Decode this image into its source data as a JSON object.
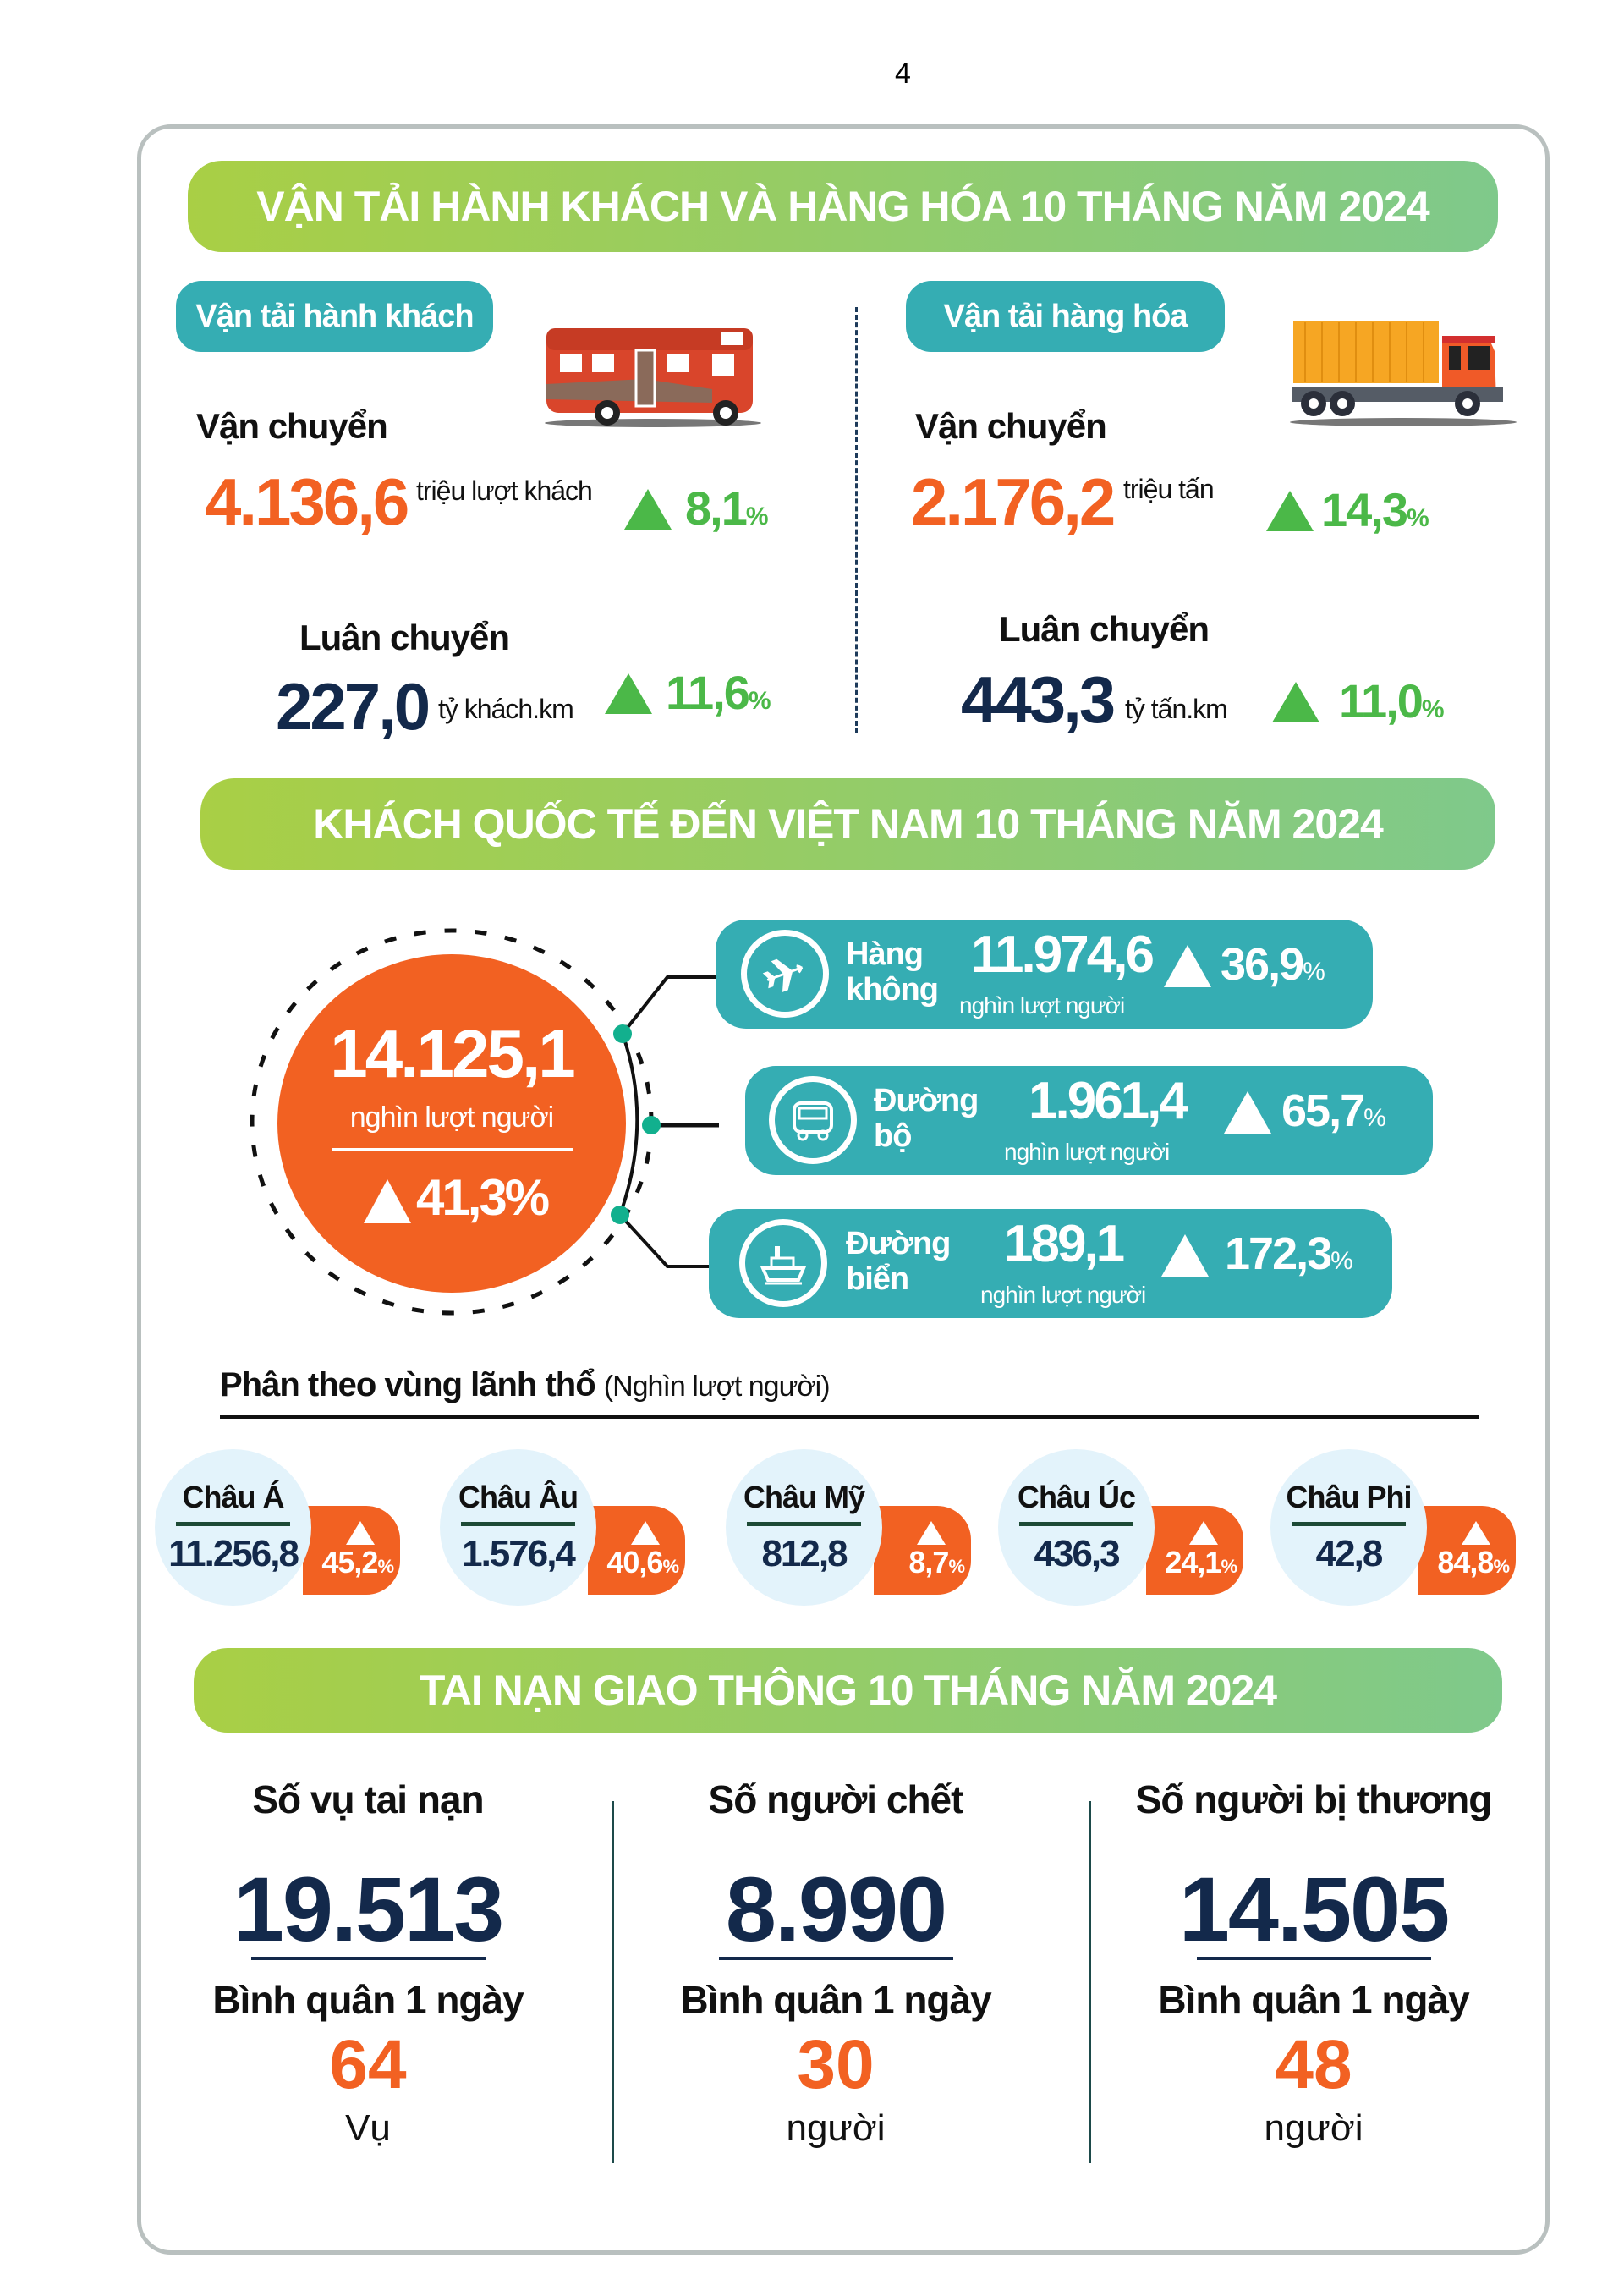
{
  "page_number": "4",
  "colors": {
    "orange": "#f26122",
    "navy": "#13294b",
    "green": "#4bb848",
    "teal": "#35adb3",
    "banner_start": "#a9cf45",
    "banner_end": "#7fc98b"
  },
  "section1": {
    "title": "VẬN TẢI HÀNH KHÁCH VÀ HÀNG HÓA 10 THÁNG NĂM 2024",
    "passenger": {
      "tag": "Vận tải hành khách",
      "icon": "bus-illustration",
      "transport_label": "Vận chuyển",
      "transport_value": "4.136,6",
      "transport_unit": "triệu lượt khách",
      "transport_change": "8,1",
      "rotation_label": "Luân chuyển",
      "rotation_value": "227,0",
      "rotation_unit": "tỷ khách.km",
      "rotation_change": "11,6"
    },
    "freight": {
      "tag": "Vận tải hàng hóa",
      "icon": "truck-illustration",
      "transport_label": "Vận chuyển",
      "transport_value": "2.176,2",
      "transport_unit": "triệu tấn",
      "transport_change": "14,3",
      "rotation_label": "Luân chuyển",
      "rotation_value": "443,3",
      "rotation_unit": "tỷ tấn.km",
      "rotation_change": "11,0"
    },
    "percent_sign": "%"
  },
  "section2": {
    "title": "KHÁCH QUỐC TẾ ĐẾN VIỆT NAM 10 THÁNG NĂM 2024",
    "total_value": "14.125,1",
    "total_unit": "nghìn lượt người",
    "total_change": "41,3%",
    "modes": [
      {
        "icon": "airplane-icon",
        "name1": "Hàng",
        "name2": "không",
        "value": "11.974,6",
        "unit": "nghìn lượt người",
        "change": "36,9"
      },
      {
        "icon": "bus-icon",
        "name1": "Đường",
        "name2": "bộ",
        "value": "1.961,4",
        "unit": "nghìn lượt người",
        "change": "65,7"
      },
      {
        "icon": "ship-icon",
        "name1": "Đường",
        "name2": "biển",
        "value": "189,1",
        "unit": "nghìn lượt người",
        "change": "172,3"
      }
    ],
    "region_heading": "Phân theo vùng lãnh thổ",
    "region_unit": "(Nghìn lượt người)",
    "regions": [
      {
        "name": "Châu Á",
        "value": "11.256,8",
        "change": "45,2"
      },
      {
        "name": "Châu Âu",
        "value": "1.576,4",
        "change": "40,6"
      },
      {
        "name": "Châu Mỹ",
        "value": "812,8",
        "change": "8,7"
      },
      {
        "name": "Châu Úc",
        "value": "436,3",
        "change": "24,1"
      },
      {
        "name": "Châu Phi",
        "value": "42,8",
        "change": "84,8"
      }
    ]
  },
  "section3": {
    "title": "TAI NẠN GIAO THÔNG 10 THÁNG NĂM 2024",
    "columns": [
      {
        "heading": "Số vụ tai nạn",
        "value": "19.513",
        "avg_label": "Bình quân 1 ngày",
        "avg_value": "64",
        "avg_unit": "Vụ"
      },
      {
        "heading": "Số người chết",
        "value": "8.990",
        "avg_label": "Bình quân 1 ngày",
        "avg_value": "30",
        "avg_unit": "người"
      },
      {
        "heading": "Số người bị thương",
        "value": "14.505",
        "avg_label": "Bình quân 1 ngày",
        "avg_value": "48",
        "avg_unit": "người"
      }
    ]
  }
}
